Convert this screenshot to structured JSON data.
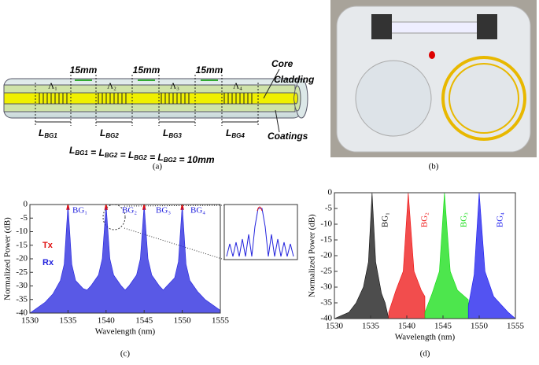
{
  "panel_a": {
    "spacings": [
      "15mm",
      "15mm",
      "15mm"
    ],
    "core": "Core",
    "cladding": "Cladding",
    "coatings": "Coatings",
    "periods": [
      "Λ₁",
      "Λ₂",
      "Λ₃",
      "Λ₄"
    ],
    "lengths": [
      {
        "main": "L",
        "sub": "BG1"
      },
      {
        "main": "L",
        "sub": "BG2"
      },
      {
        "main": "L",
        "sub": "BG3"
      },
      {
        "main": "L",
        "sub": "BG4"
      }
    ],
    "equation": [
      {
        "main": "L",
        "sub": "BG1"
      },
      {
        "main": " = L",
        "sub": "BG2"
      },
      {
        "main": " = L",
        "sub": "BG2"
      },
      {
        "main": " = L",
        "sub": "BG2"
      },
      {
        "main": " = 10mm",
        "sub": ""
      }
    ],
    "caption": "(a)"
  },
  "panel_b": {
    "caption": "(b)"
  },
  "chart_data": [
    {
      "type": "line",
      "caption": "(c)",
      "xlabel": "Wavelength (nm)",
      "ylabel": "Normalized Power (dB)",
      "xlim": [
        1530,
        1555
      ],
      "xticks": [
        1530,
        1535,
        1540,
        1545,
        1550,
        1555
      ],
      "ylim": [
        -40,
        0
      ],
      "yticks": [
        0,
        -5,
        -10,
        -15,
        -20,
        -25,
        -30,
        -35,
        -40
      ],
      "grid": false,
      "annotations": [
        "BG₁",
        "BG₂",
        "BG₃",
        "BG₄"
      ],
      "series": [
        {
          "name": "Rx",
          "color": "#2222dd",
          "fill": true,
          "x": [
            1530,
            1531,
            1532,
            1533,
            1534,
            1534.5,
            1535,
            1535.5,
            1536,
            1537,
            1537.5,
            1538,
            1539,
            1539.5,
            1540,
            1540.5,
            1541,
            1542,
            1542.5,
            1543,
            1544,
            1544.5,
            1545,
            1545.5,
            1546,
            1547,
            1547.5,
            1548,
            1549,
            1549.5,
            1550,
            1550.5,
            1551,
            1552,
            1553,
            1554,
            1555
          ],
          "values": [
            -40,
            -38,
            -36,
            -33,
            -28,
            -22,
            0,
            -22,
            -28,
            -31,
            -31.5,
            -30,
            -26,
            -20,
            0,
            -20,
            -26,
            -30,
            -31.5,
            -30,
            -26,
            -20,
            0,
            -20,
            -26,
            -30,
            -31.5,
            -30,
            -27,
            -21,
            0,
            -22,
            -28,
            -32,
            -35,
            -37,
            -39
          ]
        },
        {
          "name": "Tx",
          "color": "#e01010",
          "fill": false,
          "x": [
            1534.85,
            1535,
            1535.15,
            1536,
            1539.85,
            1540,
            1540.15,
            1541,
            1544.85,
            1545,
            1545.15,
            1546,
            1549.85,
            1550,
            1550.15
          ],
          "values": [
            -2,
            0,
            -2,
            null,
            -2,
            0,
            -2,
            null,
            -2,
            0,
            -2,
            null,
            -2,
            0,
            -2
          ]
        }
      ]
    },
    {
      "type": "line",
      "caption": "(d)",
      "xlabel": "Wavelength (nm)",
      "ylabel": "Normalized Power (dB)",
      "xlim": [
        1530,
        1555
      ],
      "xticks": [
        1530,
        1535,
        1540,
        1545,
        1550,
        1555
      ],
      "ylim": [
        -40,
        0
      ],
      "yticks": [
        0,
        -5,
        -10,
        -15,
        -20,
        -25,
        -30,
        -35,
        -40
      ],
      "grid": false,
      "annotations": [
        "BG₁",
        "BG₂",
        "BG₃",
        "BG₄"
      ],
      "series": [
        {
          "color": "#111111",
          "fill": true,
          "x": [
            1530,
            1532,
            1533,
            1534,
            1534.7,
            1535.2,
            1535.7,
            1536.5,
            1537,
            1537.5
          ],
          "values": [
            -40,
            -38,
            -35,
            -30,
            -22,
            0,
            -22,
            -32,
            -35,
            -40
          ]
        },
        {
          "color": "#ee1111",
          "fill": true,
          "x": [
            1537.5,
            1538.5,
            1539.5,
            1540.2,
            1541,
            1542,
            1542.5
          ],
          "values": [
            -38,
            -31,
            -25,
            0,
            -25,
            -31,
            -33
          ]
        },
        {
          "color": "#11dd11",
          "fill": true,
          "x": [
            1542.5,
            1543.5,
            1544.5,
            1545.2,
            1546,
            1547,
            1548.5
          ],
          "values": [
            -38,
            -32,
            -25,
            0,
            -25,
            -31,
            -34
          ]
        },
        {
          "color": "#1a1aee",
          "fill": true,
          "x": [
            1548.5,
            1549.3,
            1550,
            1550.8,
            1552,
            1554,
            1555
          ],
          "values": [
            -36,
            -26,
            0,
            -25,
            -33,
            -38,
            -40
          ]
        }
      ]
    }
  ]
}
